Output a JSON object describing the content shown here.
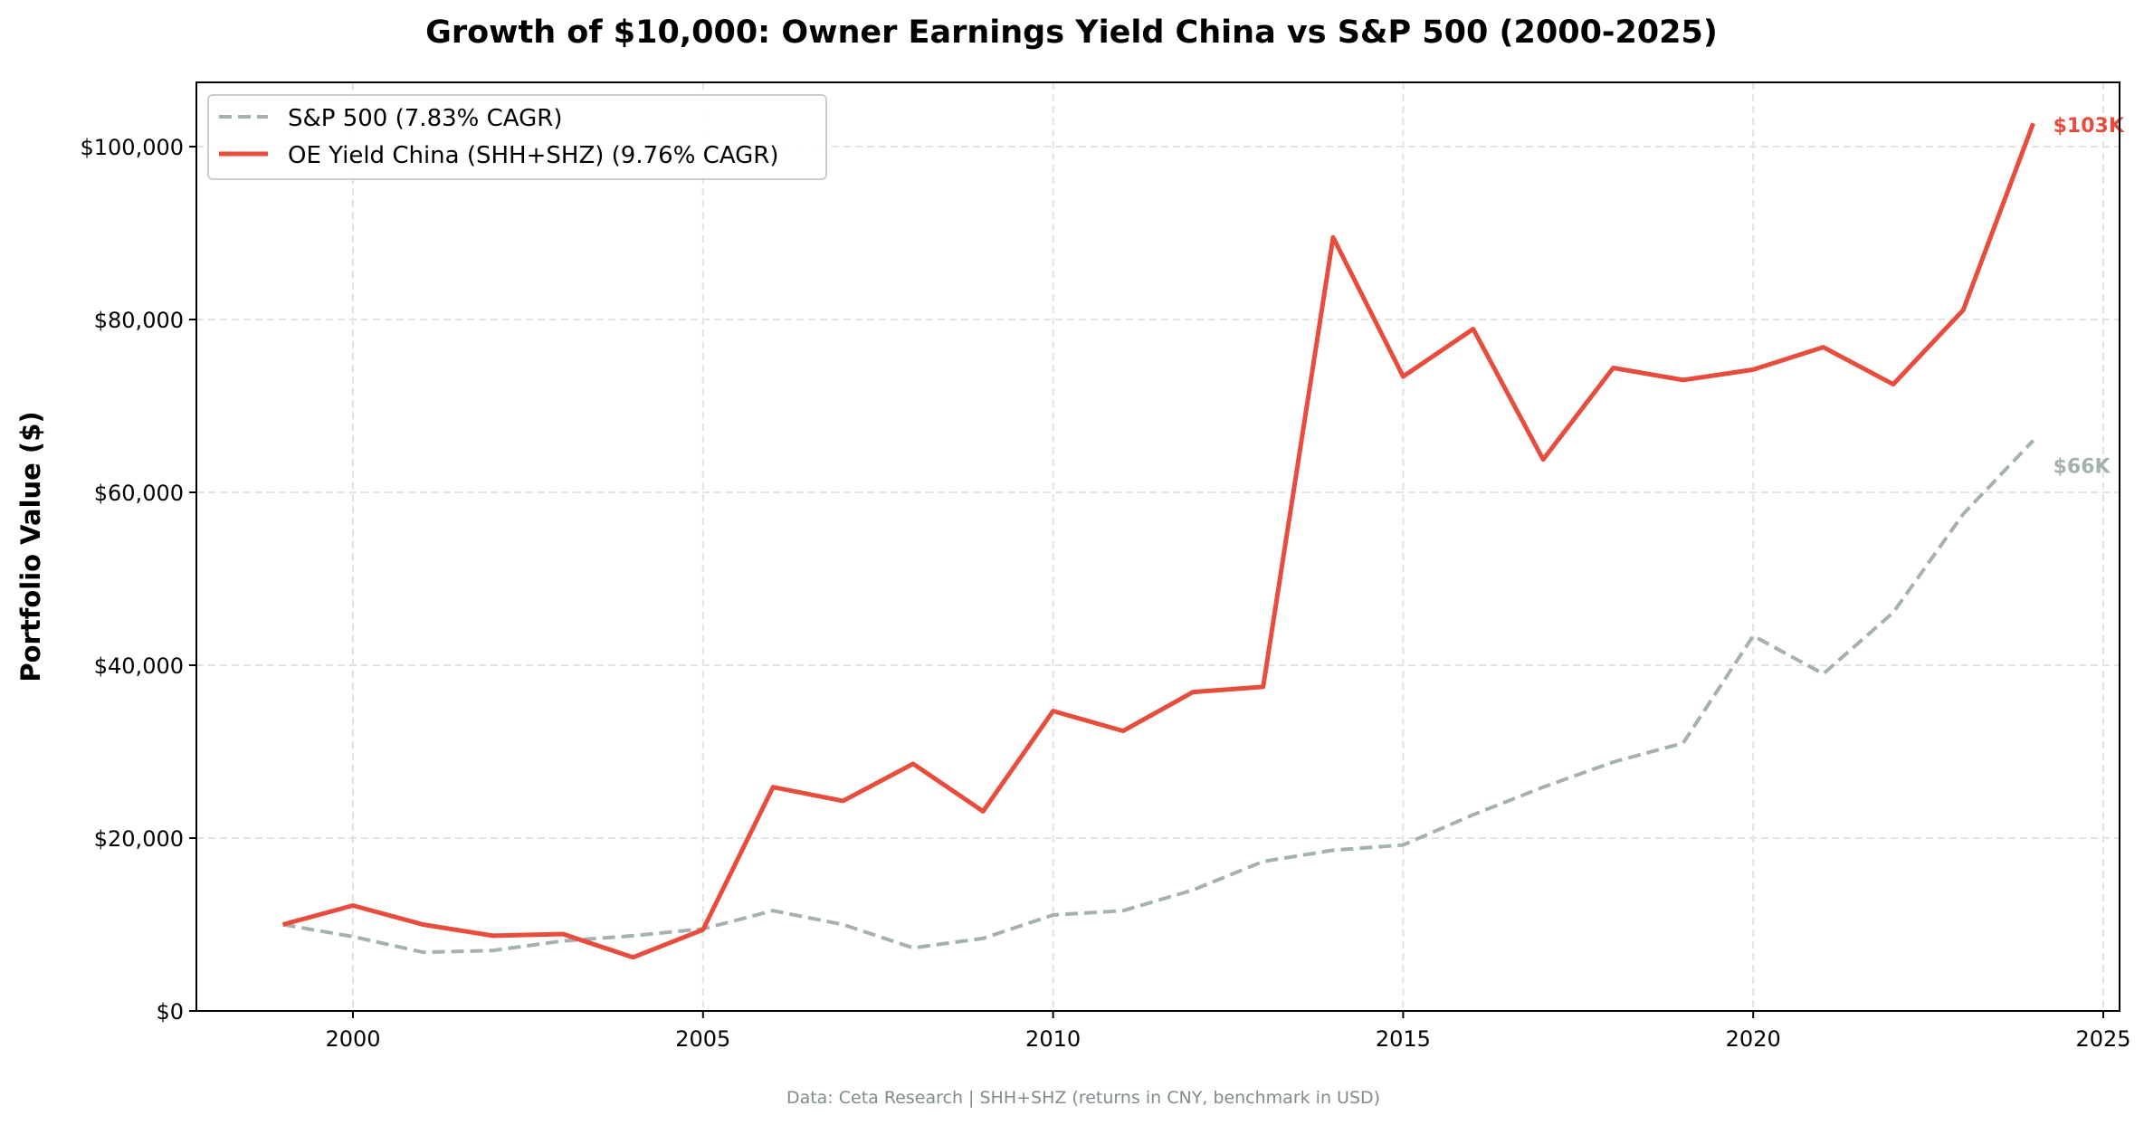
{
  "chart_data": {
    "type": "line",
    "title": "Growth of $10,000: Owner Earnings Yield China vs S&P 500 (2000-2025)",
    "xlabel": "",
    "ylabel": "Portfolio Value ($)",
    "footnote": "Data: Ceta Research | SHH+SHZ (returns in CNY, benchmark in USD)",
    "xlim": [
      1997.8,
      2025.3
    ],
    "ylim": [
      0,
      107500
    ],
    "x_ticks": [
      2000,
      2005,
      2010,
      2015,
      2020,
      2025
    ],
    "x_tick_labels": [
      "2000",
      "2005",
      "2010",
      "2015",
      "2020",
      "2025"
    ],
    "y_ticks": [
      0,
      20000,
      40000,
      60000,
      80000,
      100000
    ],
    "y_tick_labels": [
      "$0",
      "$20,000",
      "$40,000",
      "$60,000",
      "$80,000",
      "$100,000"
    ],
    "grid": true,
    "legend_position": "top-left",
    "x": [
      1999,
      2000,
      2001,
      2002,
      2003,
      2004,
      2005,
      2006,
      2007,
      2008,
      2009,
      2010,
      2011,
      2012,
      2013,
      2014,
      2015,
      2016,
      2017,
      2018,
      2019,
      2020,
      2021,
      2022,
      2023,
      2024
    ],
    "series": [
      {
        "name": "S&P 500 (7.83% CAGR)",
        "color": "#a5b1b0",
        "style": "dashed",
        "end_label": "$66K",
        "values": [
          10000,
          8600,
          6800,
          7000,
          8100,
          8700,
          9500,
          11600,
          10000,
          7300,
          8400,
          11100,
          11600,
          14000,
          17300,
          18600,
          19200,
          22700,
          25900,
          28800,
          31000,
          43400,
          39000,
          46100,
          57500,
          66000
        ]
      },
      {
        "name": "OE Yield China (SHH+SHZ) (9.76% CAGR)",
        "color": "#e74c3c",
        "style": "solid",
        "end_label": "$103K",
        "values": [
          10000,
          12200,
          10000,
          8700,
          8900,
          6200,
          9400,
          25900,
          24300,
          28600,
          23100,
          34700,
          32400,
          36900,
          37500,
          89500,
          73400,
          78900,
          63800,
          74400,
          73000,
          74200,
          76800,
          72500,
          81100,
          102700
        ]
      }
    ]
  }
}
